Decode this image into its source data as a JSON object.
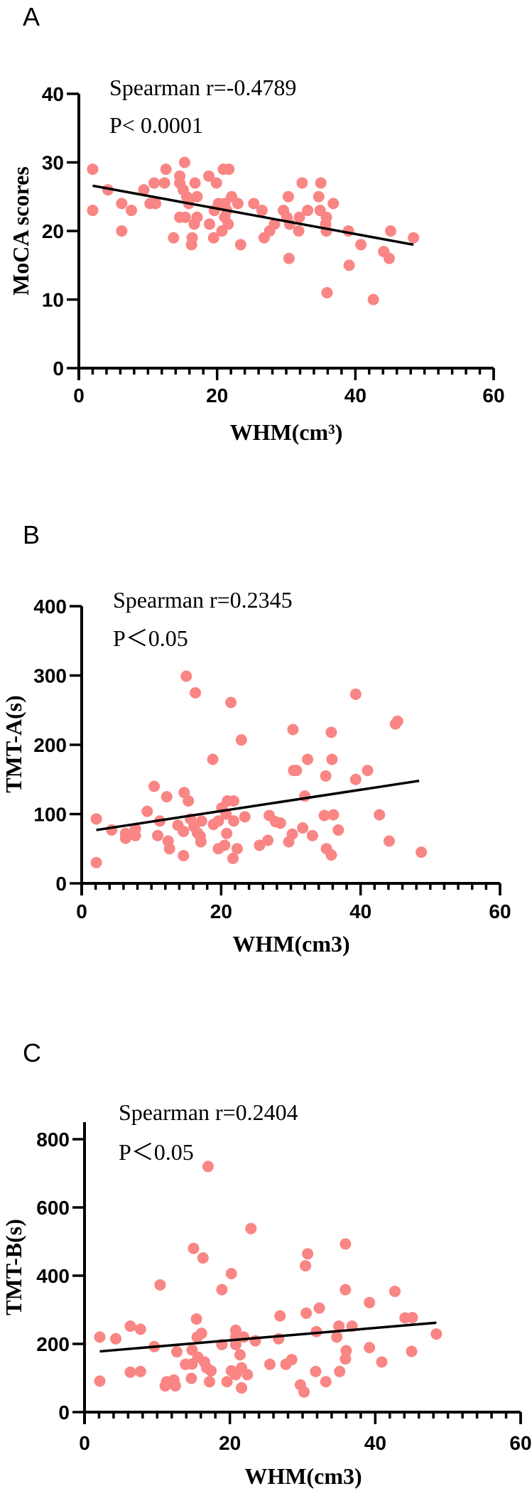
{
  "colors": {
    "point": "#f98584",
    "line": "#000000"
  },
  "chart_data": [
    {
      "panel": "A",
      "type": "scatter",
      "xlabel": "WHM(cm³)",
      "ylabel": "MoCA scores",
      "xlim": [
        0,
        60
      ],
      "ylim": [
        0,
        40
      ],
      "xticks": [
        "0",
        "20",
        "40",
        "60"
      ],
      "yticks": [
        "0",
        "10",
        "20",
        "30",
        "40"
      ],
      "annotations": [
        "Spearman r=-0.4789",
        "P< 0.0001"
      ],
      "trendline": {
        "x": [
          2,
          48.4
        ],
        "y": [
          26.6,
          18.0
        ]
      },
      "points": [
        [
          2,
          29
        ],
        [
          2,
          23
        ],
        [
          4.2,
          26
        ],
        [
          6.2,
          24
        ],
        [
          6.2,
          20
        ],
        [
          7.6,
          23
        ],
        [
          9.4,
          26
        ],
        [
          10.3,
          24
        ],
        [
          11.1,
          24
        ],
        [
          10.9,
          27
        ],
        [
          12.4,
          27
        ],
        [
          12.6,
          29
        ],
        [
          13.7,
          19
        ],
        [
          14.6,
          28
        ],
        [
          14.6,
          27
        ],
        [
          14.6,
          22
        ],
        [
          15.3,
          30
        ],
        [
          15.1,
          26
        ],
        [
          15.6,
          25
        ],
        [
          15.9,
          24
        ],
        [
          15.4,
          22
        ],
        [
          16.4,
          19
        ],
        [
          16.3,
          18
        ],
        [
          16.8,
          27
        ],
        [
          17.1,
          25
        ],
        [
          17.1,
          22
        ],
        [
          16.7,
          21
        ],
        [
          18.8,
          28
        ],
        [
          18.9,
          21
        ],
        [
          19.9,
          27
        ],
        [
          19.6,
          23
        ],
        [
          19.5,
          19
        ],
        [
          20.2,
          24
        ],
        [
          20.9,
          29
        ],
        [
          21.7,
          29
        ],
        [
          20.7,
          20
        ],
        [
          21.1,
          24
        ],
        [
          21.4,
          23
        ],
        [
          21.1,
          22
        ],
        [
          21.6,
          21
        ],
        [
          22.1,
          25
        ],
        [
          23,
          24
        ],
        [
          23.4,
          18
        ],
        [
          25.3,
          24
        ],
        [
          26.5,
          23
        ],
        [
          26.8,
          19
        ],
        [
          27.6,
          20
        ],
        [
          28.3,
          21
        ],
        [
          29.6,
          23
        ],
        [
          30.3,
          25
        ],
        [
          30.4,
          16
        ],
        [
          30.1,
          22
        ],
        [
          30.5,
          21
        ],
        [
          31.8,
          20
        ],
        [
          31.9,
          22
        ],
        [
          32.3,
          27
        ],
        [
          33.1,
          23
        ],
        [
          34.7,
          25
        ],
        [
          35,
          27
        ],
        [
          34.9,
          23
        ],
        [
          35.8,
          22
        ],
        [
          35.7,
          21
        ],
        [
          35.8,
          20
        ],
        [
          35.9,
          11
        ],
        [
          36.8,
          24
        ],
        [
          39,
          20
        ],
        [
          39.1,
          15
        ],
        [
          40.8,
          18
        ],
        [
          42.6,
          10
        ],
        [
          44.1,
          17
        ],
        [
          44.9,
          16
        ],
        [
          45.1,
          20
        ],
        [
          48.4,
          19
        ]
      ]
    },
    {
      "panel": "B",
      "type": "scatter",
      "xlabel": "WHM(cm3)",
      "ylabel": "TMT-A(s)",
      "xlim": [
        0,
        60
      ],
      "ylim": [
        0,
        400
      ],
      "xticks": [
        "0",
        "20",
        "40",
        "60"
      ],
      "yticks": [
        "0",
        "100",
        "200",
        "300",
        "400"
      ],
      "annotations": [
        "Spearman r=0.2345",
        "P＜0.05"
      ],
      "trendline": {
        "x": [
          2.1,
          48.4
        ],
        "y": [
          77,
          148
        ]
      },
      "points": [
        [
          2.1,
          93
        ],
        [
          2.1,
          30
        ],
        [
          4.3,
          77
        ],
        [
          6.3,
          72
        ],
        [
          6.3,
          65
        ],
        [
          7.7,
          79
        ],
        [
          7.7,
          69
        ],
        [
          9.4,
          104
        ],
        [
          10.4,
          140
        ],
        [
          10.9,
          69
        ],
        [
          11.2,
          90
        ],
        [
          12.2,
          125
        ],
        [
          12.4,
          61
        ],
        [
          12.6,
          50
        ],
        [
          13.8,
          84
        ],
        [
          14.7,
          131
        ],
        [
          14.6,
          40
        ],
        [
          14.6,
          75
        ],
        [
          15,
          299
        ],
        [
          15.3,
          119
        ],
        [
          15.6,
          93
        ],
        [
          16.3,
          275
        ],
        [
          16.1,
          82
        ],
        [
          16.6,
          73
        ],
        [
          17,
          68
        ],
        [
          17.1,
          60
        ],
        [
          17.2,
          90
        ],
        [
          18.8,
          179
        ],
        [
          18.9,
          85
        ],
        [
          19.6,
          90
        ],
        [
          19.6,
          50
        ],
        [
          20.1,
          109
        ],
        [
          20.5,
          55
        ],
        [
          20.7,
          100
        ],
        [
          20.8,
          72
        ],
        [
          20.9,
          119
        ],
        [
          21.4,
          261
        ],
        [
          21.8,
          119
        ],
        [
          21.8,
          90
        ],
        [
          21.7,
          36
        ],
        [
          22.3,
          50
        ],
        [
          22.9,
          207
        ],
        [
          23.4,
          96
        ],
        [
          25.5,
          55
        ],
        [
          26.7,
          62
        ],
        [
          26.9,
          98
        ],
        [
          27.8,
          89
        ],
        [
          28.5,
          87
        ],
        [
          29.7,
          60
        ],
        [
          30.2,
          71
        ],
        [
          30.3,
          222
        ],
        [
          30.4,
          163
        ],
        [
          30.8,
          163
        ],
        [
          31.7,
          80
        ],
        [
          32,
          126
        ],
        [
          32.4,
          179
        ],
        [
          33.1,
          69
        ],
        [
          35,
          155
        ],
        [
          34.8,
          98
        ],
        [
          35.1,
          50
        ],
        [
          35.8,
          218
        ],
        [
          35.9,
          179
        ],
        [
          36.1,
          99
        ],
        [
          35.8,
          41
        ],
        [
          36.8,
          77
        ],
        [
          39.3,
          273
        ],
        [
          39.3,
          150
        ],
        [
          41,
          163
        ],
        [
          42.7,
          99
        ],
        [
          44.1,
          61
        ],
        [
          45,
          230
        ],
        [
          45.3,
          234
        ],
        [
          48.7,
          45
        ]
      ]
    },
    {
      "panel": "C",
      "type": "scatter",
      "xlabel": "WHM(cm3)",
      "ylabel": "TMT-B(s)",
      "xlim": [
        0,
        60
      ],
      "ylim": [
        0,
        850
      ],
      "xticks": [
        "0",
        "20",
        "40",
        "60"
      ],
      "yticks": [
        "0",
        "200",
        "400",
        "600",
        "800"
      ],
      "annotations": [
        "Spearman r=0.2404",
        "P＜0.05"
      ],
      "trendline": {
        "x": [
          2.1,
          48.4
        ],
        "y": [
          178,
          262
        ]
      },
      "points": [
        [
          2.1,
          220
        ],
        [
          2.1,
          91
        ],
        [
          4.3,
          215
        ],
        [
          6.3,
          252
        ],
        [
          6.3,
          117
        ],
        [
          7.7,
          243
        ],
        [
          7.7,
          119
        ],
        [
          9.6,
          192
        ],
        [
          10.4,
          373
        ],
        [
          11.1,
          77
        ],
        [
          11.3,
          89
        ],
        [
          12.3,
          94
        ],
        [
          12.5,
          77
        ],
        [
          12.7,
          177
        ],
        [
          13.9,
          140
        ],
        [
          14.7,
          99
        ],
        [
          14.8,
          182
        ],
        [
          14.8,
          141
        ],
        [
          15,
          480
        ],
        [
          15.4,
          273
        ],
        [
          15.5,
          220
        ],
        [
          15.6,
          161
        ],
        [
          16.1,
          231
        ],
        [
          16.3,
          452
        ],
        [
          16.5,
          147
        ],
        [
          16.8,
          130
        ],
        [
          17.2,
          89
        ],
        [
          17.4,
          121
        ],
        [
          17,
          720
        ],
        [
          18.9,
          359
        ],
        [
          18.9,
          198
        ],
        [
          19.6,
          89
        ],
        [
          20.2,
          121
        ],
        [
          20.2,
          406
        ],
        [
          20.8,
          240
        ],
        [
          20.8,
          220
        ],
        [
          20.8,
          198
        ],
        [
          20.8,
          110
        ],
        [
          21.4,
          168
        ],
        [
          21.6,
          130
        ],
        [
          21.6,
          71
        ],
        [
          21.9,
          220
        ],
        [
          22.4,
          110
        ],
        [
          22.9,
          538
        ],
        [
          23.5,
          209
        ],
        [
          25.5,
          140
        ],
        [
          26.7,
          215
        ],
        [
          26.9,
          282
        ],
        [
          27.7,
          140
        ],
        [
          28.5,
          154
        ],
        [
          29.7,
          80
        ],
        [
          30.2,
          59
        ],
        [
          30.4,
          429
        ],
        [
          30.7,
          464
        ],
        [
          30.5,
          290
        ],
        [
          31.8,
          119
        ],
        [
          31.9,
          236
        ],
        [
          32.3,
          305
        ],
        [
          33.2,
          89
        ],
        [
          34.7,
          220
        ],
        [
          35,
          252
        ],
        [
          35.1,
          119
        ],
        [
          35.9,
          493
        ],
        [
          35.9,
          156
        ],
        [
          36,
          180
        ],
        [
          35.9,
          359
        ],
        [
          36.8,
          252
        ],
        [
          39.2,
          321
        ],
        [
          39.2,
          189
        ],
        [
          40.9,
          147
        ],
        [
          42.7,
          354
        ],
        [
          44.1,
          276
        ],
        [
          45.1,
          277
        ],
        [
          45,
          178
        ],
        [
          48.4,
          229
        ]
      ]
    }
  ]
}
